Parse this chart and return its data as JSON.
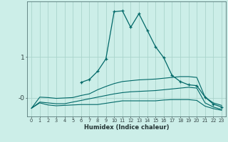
{
  "xlabel": "Humidex (Indice chaleur)",
  "background_color": "#cceee8",
  "line_color": "#006868",
  "grid_color": "#aad4cc",
  "x": [
    0,
    1,
    2,
    3,
    4,
    5,
    6,
    7,
    8,
    9,
    10,
    11,
    12,
    13,
    14,
    15,
    16,
    17,
    18,
    19,
    20,
    21,
    22,
    23
  ],
  "line1_x": [
    6,
    7,
    8,
    9,
    10,
    11,
    12,
    13,
    14,
    15,
    16,
    17,
    18,
    19,
    20,
    21,
    22,
    23
  ],
  "line1_y": [
    0.38,
    0.45,
    0.65,
    0.95,
    2.1,
    2.12,
    1.72,
    2.05,
    1.65,
    1.25,
    0.98,
    0.55,
    0.4,
    0.32,
    0.3,
    0.02,
    -0.15,
    -0.22
  ],
  "line2": [
    -0.25,
    0.02,
    0.01,
    -0.01,
    0.0,
    0.01,
    0.06,
    0.1,
    0.2,
    0.28,
    0.35,
    0.4,
    0.42,
    0.44,
    0.45,
    0.46,
    0.48,
    0.5,
    0.52,
    0.52,
    0.5,
    0.02,
    -0.12,
    -0.18
  ],
  "line3": [
    -0.25,
    -0.1,
    -0.12,
    -0.14,
    -0.14,
    -0.1,
    -0.06,
    -0.02,
    0.02,
    0.06,
    0.1,
    0.13,
    0.15,
    0.16,
    0.17,
    0.18,
    0.2,
    0.22,
    0.24,
    0.26,
    0.24,
    -0.12,
    -0.22,
    -0.28
  ],
  "line4": [
    -0.25,
    -0.12,
    -0.17,
    -0.19,
    -0.18,
    -0.17,
    -0.16,
    -0.16,
    -0.16,
    -0.13,
    -0.1,
    -0.07,
    -0.07,
    -0.07,
    -0.07,
    -0.07,
    -0.05,
    -0.04,
    -0.04,
    -0.04,
    -0.06,
    -0.2,
    -0.26,
    -0.3
  ],
  "ylim": [
    -0.45,
    2.35
  ],
  "yticks": [
    0.0,
    1.0
  ],
  "ytick_labels": [
    "-0",
    "1"
  ],
  "xlim": [
    -0.5,
    23.5
  ],
  "xticks": [
    0,
    1,
    2,
    3,
    4,
    5,
    6,
    7,
    8,
    9,
    10,
    11,
    12,
    13,
    14,
    15,
    16,
    17,
    18,
    19,
    20,
    21,
    22,
    23
  ]
}
